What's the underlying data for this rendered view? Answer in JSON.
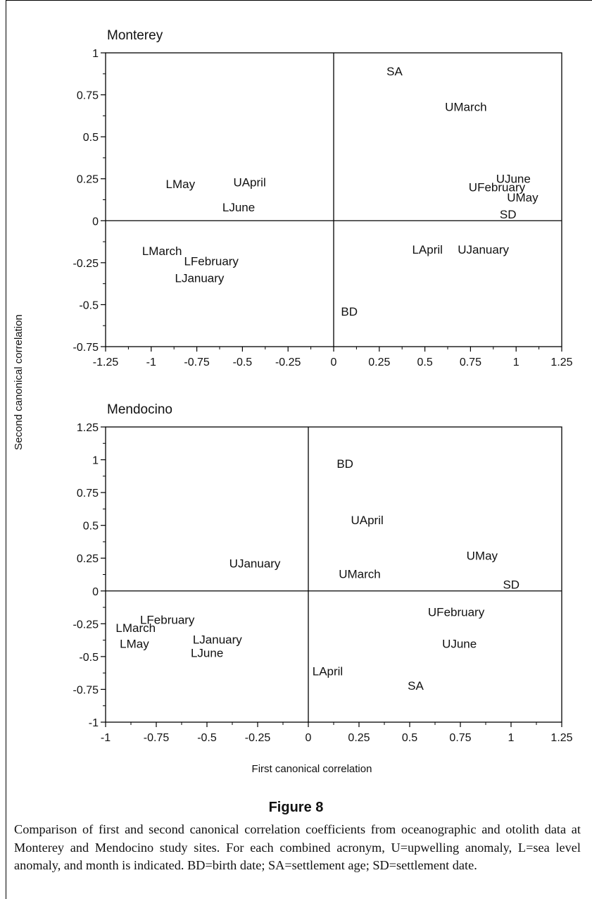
{
  "chart_data": [
    {
      "type": "scatter",
      "title": "Monterey",
      "xlim": [
        -1.25,
        1.25
      ],
      "ylim": [
        -0.75,
        1
      ],
      "xticks": [
        {
          "v": -1.25,
          "label": "-1.25"
        },
        {
          "v": -1,
          "label": "-1"
        },
        {
          "v": -0.75,
          "label": "-0.75"
        },
        {
          "v": -0.5,
          "label": "-0.5"
        },
        {
          "v": -0.25,
          "label": "-0.25"
        },
        {
          "v": 0,
          "label": "0"
        },
        {
          "v": 0.25,
          "label": "0.25"
        },
        {
          "v": 0.5,
          "label": "0.5"
        },
        {
          "v": 0.75,
          "label": "0.75"
        },
        {
          "v": 1,
          "label": "1"
        },
        {
          "v": 1.25,
          "label": "1.25"
        }
      ],
      "yticks": [
        {
          "v": -0.75,
          "label": "-0.75"
        },
        {
          "v": -0.5,
          "label": "-0.5"
        },
        {
          "v": -0.25,
          "label": "-0.25"
        },
        {
          "v": 0,
          "label": "0"
        },
        {
          "v": 0.25,
          "label": "0.25"
        },
        {
          "v": 0.5,
          "label": "0.5"
        },
        {
          "v": 0.75,
          "label": "0.75"
        },
        {
          "v": 1,
          "label": "1"
        }
      ],
      "grid": false,
      "reference_lines": "x=0 and y=0",
      "points": [
        {
          "label": "SA",
          "x": 0.29,
          "y": 0.89
        },
        {
          "label": "UMarch",
          "x": 0.61,
          "y": 0.68
        },
        {
          "label": "LMay",
          "x": -0.92,
          "y": 0.22
        },
        {
          "label": "UApril",
          "x": -0.55,
          "y": 0.23
        },
        {
          "label": "LJune",
          "x": -0.61,
          "y": 0.08
        },
        {
          "label": "UJune",
          "x": 0.89,
          "y": 0.25
        },
        {
          "label": "UFebruary",
          "x": 0.74,
          "y": 0.2
        },
        {
          "label": "UMay",
          "x": 0.95,
          "y": 0.14
        },
        {
          "label": "SD",
          "x": 0.91,
          "y": 0.04
        },
        {
          "label": "LMarch",
          "x": -1.05,
          "y": -0.18
        },
        {
          "label": "LFebruary",
          "x": -0.82,
          "y": -0.24
        },
        {
          "label": "LJanuary",
          "x": -0.87,
          "y": -0.34
        },
        {
          "label": "LApril",
          "x": 0.43,
          "y": -0.17
        },
        {
          "label": "UJanuary",
          "x": 0.68,
          "y": -0.17
        },
        {
          "label": "BD",
          "x": 0.04,
          "y": -0.54
        }
      ]
    },
    {
      "type": "scatter",
      "title": "Mendocino",
      "xlim": [
        -1,
        1.25
      ],
      "ylim": [
        -1,
        1.25
      ],
      "xticks": [
        {
          "v": -1,
          "label": "-1"
        },
        {
          "v": -0.75,
          "label": "-0.75"
        },
        {
          "v": -0.5,
          "label": "-0.5"
        },
        {
          "v": -0.25,
          "label": "-0.25"
        },
        {
          "v": 0,
          "label": "0"
        },
        {
          "v": 0.25,
          "label": "0.25"
        },
        {
          "v": 0.5,
          "label": "0.5"
        },
        {
          "v": 0.75,
          "label": "0.75"
        },
        {
          "v": 1,
          "label": "1"
        },
        {
          "v": 1.25,
          "label": "1.25"
        }
      ],
      "yticks": [
        {
          "v": -1,
          "label": "-1"
        },
        {
          "v": -0.75,
          "label": "-0.75"
        },
        {
          "v": -0.5,
          "label": "-0.5"
        },
        {
          "v": -0.25,
          "label": "-0.25"
        },
        {
          "v": 0,
          "label": "0"
        },
        {
          "v": 0.25,
          "label": "0.25"
        },
        {
          "v": 0.5,
          "label": "0.5"
        },
        {
          "v": 0.75,
          "label": "0.75"
        },
        {
          "v": 1,
          "label": "1"
        },
        {
          "v": 1.25,
          "label": "1.25"
        }
      ],
      "grid": false,
      "reference_lines": "x=0 and y=0",
      "points": [
        {
          "label": "BD",
          "x": 0.14,
          "y": 0.97
        },
        {
          "label": "UApril",
          "x": 0.21,
          "y": 0.54
        },
        {
          "label": "UJanuary",
          "x": -0.39,
          "y": 0.21
        },
        {
          "label": "UMarch",
          "x": 0.15,
          "y": 0.13
        },
        {
          "label": "UMay",
          "x": 0.78,
          "y": 0.27
        },
        {
          "label": "SD",
          "x": 0.96,
          "y": 0.05
        },
        {
          "label": "UFebruary",
          "x": 0.59,
          "y": -0.16
        },
        {
          "label": "LFebruary",
          "x": -0.83,
          "y": -0.22
        },
        {
          "label": "LMarch",
          "x": -0.95,
          "y": -0.28
        },
        {
          "label": "LMay",
          "x": -0.93,
          "y": -0.4
        },
        {
          "label": "LJanuary",
          "x": -0.57,
          "y": -0.37
        },
        {
          "label": "LJune",
          "x": -0.58,
          "y": -0.47
        },
        {
          "label": "UJune",
          "x": 0.66,
          "y": -0.4
        },
        {
          "label": "LApril",
          "x": 0.02,
          "y": -0.61
        },
        {
          "label": "SA",
          "x": 0.49,
          "y": -0.72
        }
      ]
    }
  ],
  "shared_axes": {
    "xlabel": "First canonical correlation",
    "ylabel": "Second canonical correlation"
  },
  "figure_title": "Figure 8",
  "caption": "Comparison of first and second canonical correlation coefficients from oceanographic and otolith data at Monterey and Mendocino study sites. For each combined acronym, U=upwelling anomaly, L=sea level anomaly, and month is indicated. BD=birth date; SA=settlement age; SD=settlement date."
}
